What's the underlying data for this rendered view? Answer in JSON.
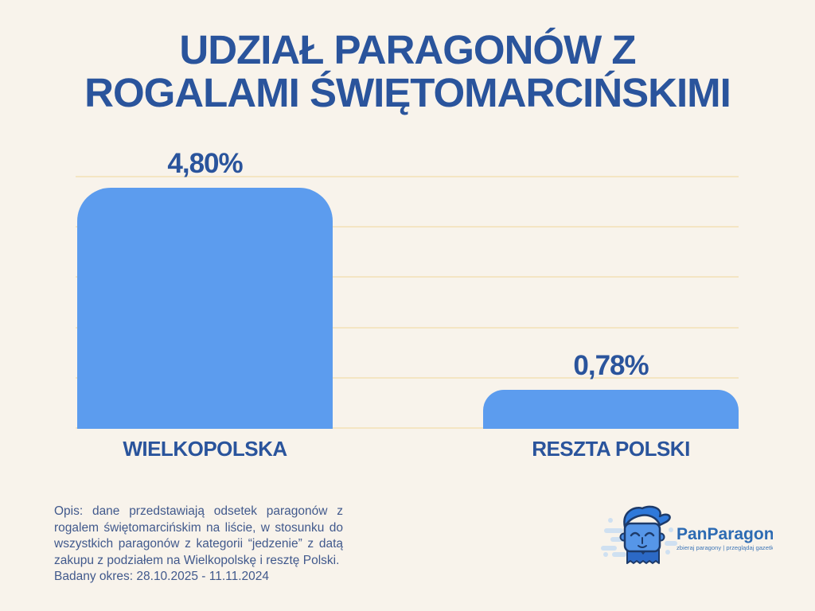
{
  "title": {
    "text": "UDZIAŁ PARAGONÓW Z ROGALAMI ŚWIĘTOMARCIŃSKIMI",
    "lines": [
      "UDZIAŁ PARAGONÓW Z",
      "ROGALAMI ŚWIĘTOMARCIŃSKIMI"
    ]
  },
  "chart_data": {
    "type": "bar",
    "title": "UDZIAŁ PARAGONÓW Z ROGALAMI ŚWIĘTOMARCIŃSKIMI",
    "categories": [
      "WIELKOPOLSKA",
      "RESZTA POLSKI"
    ],
    "values": [
      4.8,
      0.78
    ],
    "value_labels": [
      "4,80%",
      "0,78%"
    ],
    "unit": "%",
    "ylim": [
      0,
      5
    ],
    "gridline_values": [
      0,
      1,
      2,
      3,
      4,
      5
    ],
    "grid": true,
    "legend": false,
    "orientation": "vertical",
    "colors": {
      "bar": "#5C9CEE",
      "label": "#2A549C",
      "gridline": "#F4E5C3",
      "background": "#F8F3EB"
    }
  },
  "description": {
    "text": "Opis: dane przedstawiają odsetek paragonów z rogalem świętomarcińskim na liście, w stosunku do wszystkich paragonów z kategorii “jedzenie” z datą zakupu z podziałem na Wielkopolskę i resztę Polski.",
    "period": "Badany okres: 28.10.2025 - 11.11.2024"
  },
  "logo": {
    "name": "PanParagon",
    "tagline": "zbieraj paragony | przeglądaj gazetki"
  }
}
